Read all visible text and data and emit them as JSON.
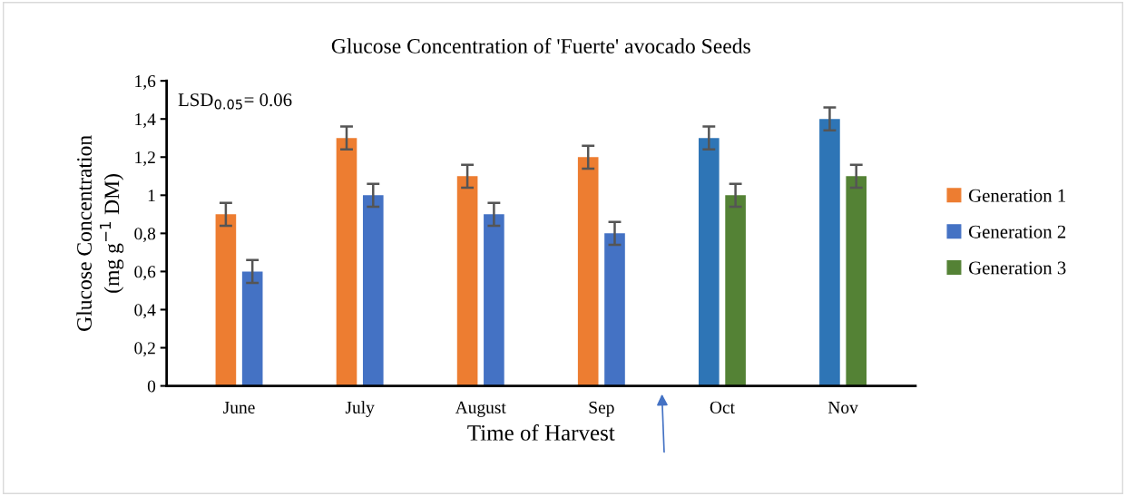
{
  "chart_data": {
    "type": "bar",
    "title": "Glucose Concentration of 'Fuerte' avocado Seeds",
    "xlabel": "Time of Harvest",
    "ylabel": "Glucose Concentration\n(mg g$^{−1}$ DM)",
    "categories": [
      "June",
      "July",
      "August",
      "Sep",
      "Oct",
      "Nov"
    ],
    "series": [
      {
        "name": "Generation 1",
        "color": "#ed7d31",
        "values": [
          0.9,
          1.3,
          1.1,
          1.2,
          null,
          null
        ],
        "errors": [
          0.06,
          0.06,
          0.06,
          0.06,
          null,
          null
        ]
      },
      {
        "name": "Generation 2",
        "color": "#4472c4",
        "colors": [
          "#4472c4",
          "#4472c4",
          "#4472c4",
          "#4472c4",
          "#2e75b6",
          "#2e75b6"
        ],
        "values": [
          0.6,
          1.0,
          0.9,
          0.8,
          1.3,
          1.4
        ],
        "errors": [
          0.06,
          0.06,
          0.06,
          0.06,
          0.06,
          0.06
        ]
      },
      {
        "name": "Generation 3",
        "color": "#548235",
        "values": [
          null,
          null,
          null,
          null,
          1.0,
          1.1
        ],
        "errors": [
          null,
          null,
          null,
          null,
          0.06,
          0.06
        ]
      }
    ],
    "ylim": [
      0,
      1.6
    ],
    "yticks": [
      0,
      {
        "value": 0.2,
        "label": "0,2"
      },
      {
        "value": 0.4,
        "label": "0,4"
      },
      {
        "value": 0.6,
        "label": "0,6"
      },
      {
        "value": 0.8,
        "label": "0,8"
      },
      1,
      {
        "value": 1.2,
        "label": "1,2"
      },
      {
        "value": 1.4,
        "label": "1,4"
      },
      {
        "value": 1.6,
        "label": "1,6"
      }
    ],
    "annotations": [
      "LSD$_{0.05}$= 0.06"
    ],
    "grid": false,
    "legend": "right"
  }
}
